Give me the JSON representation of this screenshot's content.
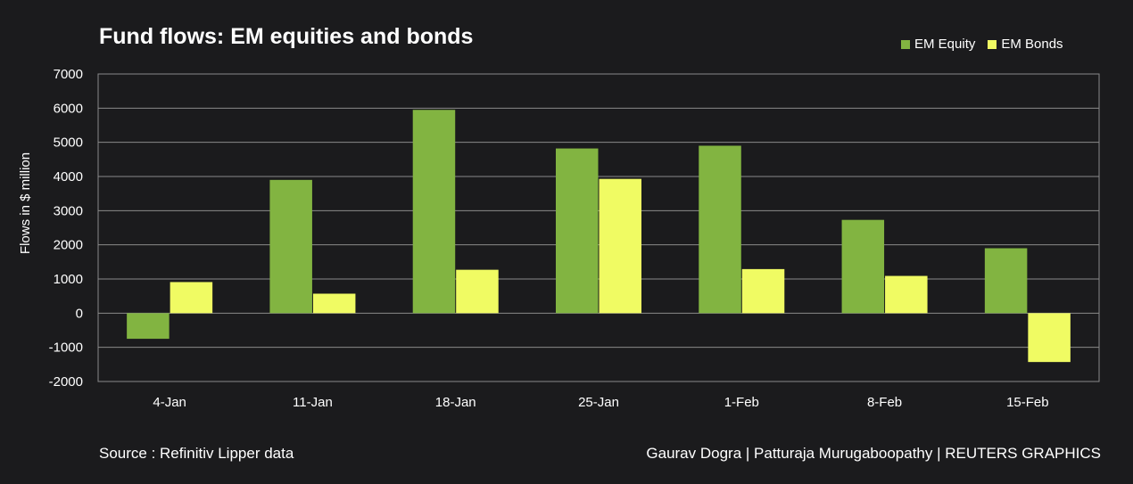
{
  "chart_data": {
    "type": "bar",
    "title": "Fund flows: EM equities and bonds",
    "xlabel": "",
    "ylabel": "Flows in $ million",
    "ylim": [
      -2000,
      7000
    ],
    "yticks": [
      -2000,
      -1000,
      0,
      1000,
      2000,
      3000,
      4000,
      5000,
      6000,
      7000
    ],
    "ytick_labels": [
      "-2000",
      "-1000",
      "0",
      "1000",
      "2000",
      "3000",
      "4000",
      "5000",
      "6000",
      "7000"
    ],
    "grid": true,
    "legend_position": "top-right",
    "categories": [
      "4-Jan",
      "11-Jan",
      "18-Jan",
      "25-Jan",
      "1-Feb",
      "8-Feb",
      "15-Feb"
    ],
    "series": [
      {
        "name": "EM Equity",
        "color": "#82b441",
        "values": [
          -750,
          3900,
          5950,
          4820,
          4900,
          2730,
          1900
        ]
      },
      {
        "name": "EM Bonds",
        "color": "#f0fb63",
        "values": [
          910,
          570,
          1270,
          3930,
          1290,
          1090,
          -1430
        ]
      }
    ]
  },
  "footer": {
    "source": "Source : Refinitiv Lipper data",
    "credit": "Gaurav Dogra | Patturaja Murugaboopathy | REUTERS GRAPHICS"
  }
}
